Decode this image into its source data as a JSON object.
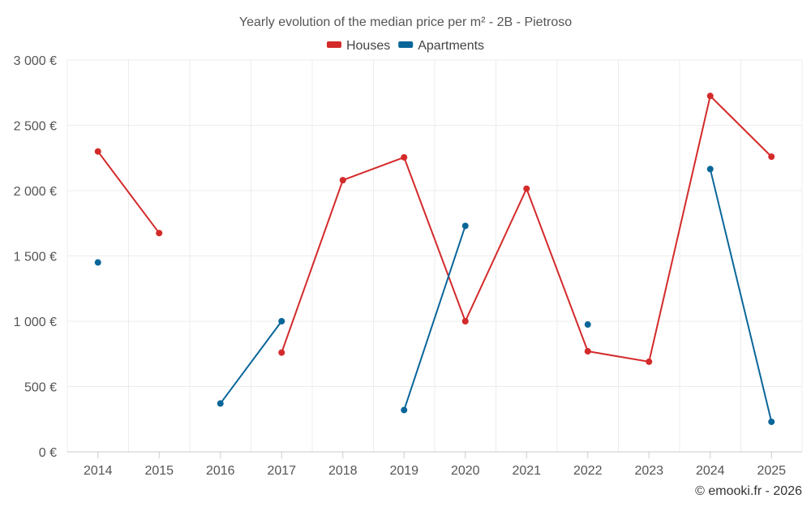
{
  "chart_data": {
    "type": "line",
    "title": "Yearly evolution of the median price per m² - 2B - Pietroso",
    "categories": [
      "2014",
      "2015",
      "2016",
      "2017",
      "2018",
      "2019",
      "2020",
      "2021",
      "2022",
      "2023",
      "2024",
      "2025"
    ],
    "ylim": [
      0,
      3000
    ],
    "yticks": [
      0,
      500,
      1000,
      1500,
      2000,
      2500,
      3000
    ],
    "ytick_labels": [
      "0 €",
      "500 €",
      "1 000 €",
      "1 500 €",
      "2 000 €",
      "2 500 €",
      "3 000 €"
    ],
    "grid": true,
    "legend_position": "top-center",
    "series": [
      {
        "name": "Houses",
        "color": "#d42a2a",
        "values": [
          2300,
          1675,
          null,
          760,
          2080,
          2255,
          1000,
          2015,
          770,
          690,
          2725,
          2260
        ]
      },
      {
        "name": "Apartments",
        "color": "#0a6699",
        "values": [
          1450,
          null,
          370,
          1000,
          null,
          320,
          1730,
          null,
          975,
          null,
          2165,
          230
        ]
      }
    ]
  },
  "credit": "© emooki.fr - 2026"
}
